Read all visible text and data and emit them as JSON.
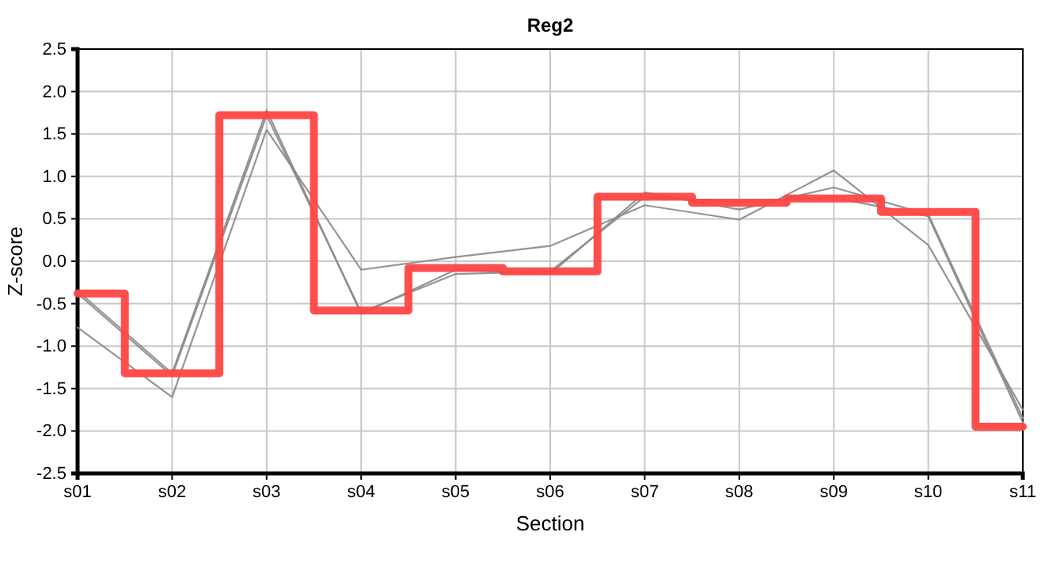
{
  "chart_data": {
    "type": "line",
    "title": "Reg2",
    "xlabel": "Section",
    "ylabel": "Z-score",
    "categories": [
      "s01",
      "s02",
      "s03",
      "s04",
      "s05",
      "s06",
      "s07",
      "s08",
      "s09",
      "s10",
      "s11"
    ],
    "ylim": [
      -2.5,
      2.5
    ],
    "yticks": [
      {
        "value": -2.5,
        "label": "-2.5"
      },
      {
        "value": -2,
        "label": "-2.0"
      },
      {
        "value": -1.5,
        "label": "-1.5"
      },
      {
        "value": -1,
        "label": "-1.0"
      },
      {
        "value": -0.5,
        "label": "-0.5"
      },
      {
        "value": 0,
        "label": "0.0"
      },
      {
        "value": 0.5,
        "label": "0.5"
      },
      {
        "value": 1,
        "label": "1.0"
      },
      {
        "value": 1.5,
        "label": "1.5"
      },
      {
        "value": 2,
        "label": "2.0"
      },
      {
        "value": 2.5,
        "label": "2.5"
      }
    ],
    "grid": true,
    "marker": "none",
    "line_style": "solid",
    "series": [
      {
        "type": "line",
        "color": "#888888",
        "values": [
          -0.35,
          -1.32,
          1.78,
          -0.62,
          -0.1,
          -0.15,
          0.81,
          0.61,
          0.87,
          0.55,
          -1.85
        ]
      },
      {
        "type": "line",
        "color": "#888888",
        "values": [
          -0.38,
          -1.35,
          1.72,
          -0.6,
          -0.15,
          -0.12,
          0.76,
          0.7,
          0.75,
          0.53,
          -1.9
        ]
      },
      {
        "type": "line",
        "color": "#888888",
        "values": [
          -0.78,
          -1.6,
          1.55,
          -0.1,
          0.05,
          0.18,
          0.66,
          0.49,
          1.07,
          0.19,
          -1.75
        ]
      },
      {
        "type": "step",
        "color": "#ff4444",
        "values": [
          -0.38,
          -1.32,
          1.72,
          -0.58,
          -0.08,
          -0.12,
          0.76,
          0.69,
          0.74,
          0.58,
          -1.95
        ]
      }
    ]
  }
}
